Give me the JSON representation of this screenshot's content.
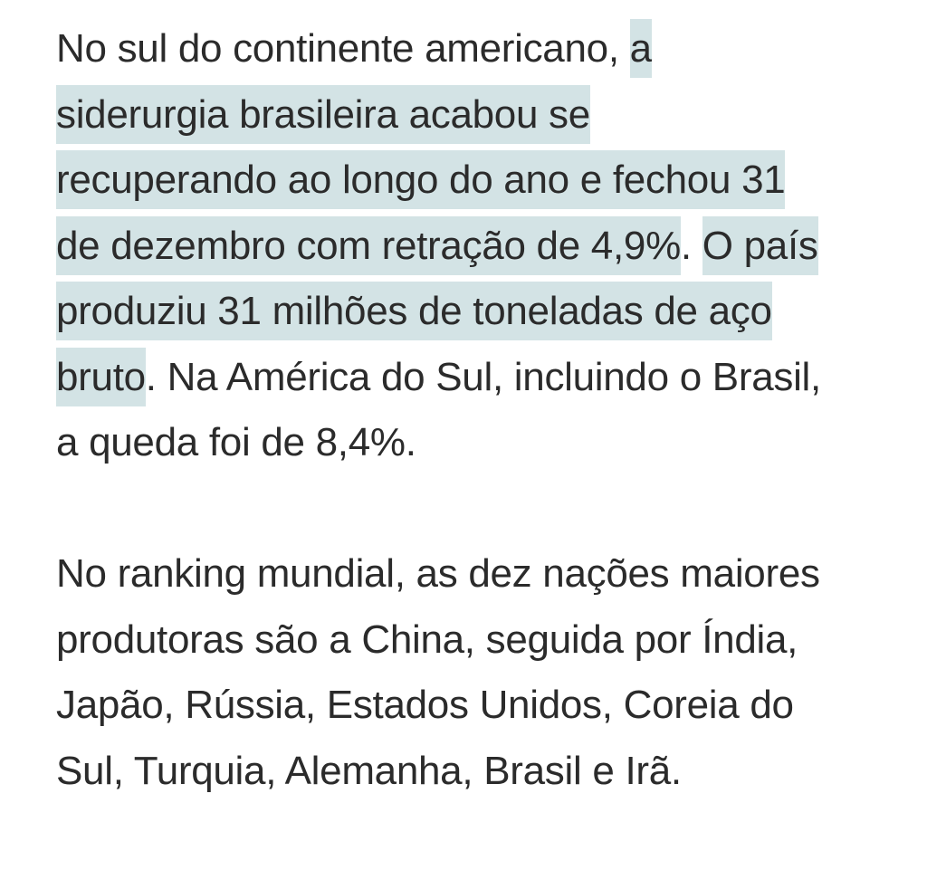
{
  "colors": {
    "text": "#2b2b2b",
    "highlight": "#d3e3e5",
    "background": "#ffffff"
  },
  "paragraphs": [
    {
      "lines": [
        [
          {
            "text": "No sul do continente americano, ",
            "hl": false
          },
          {
            "text": "a",
            "hl": true
          }
        ],
        [
          {
            "text": "siderurgia brasileira acabou se",
            "hl": true
          }
        ],
        [
          {
            "text": "recuperando ao longo do ano e fechou 31",
            "hl": true
          }
        ],
        [
          {
            "text": "de dezembro com retração de 4,9%",
            "hl": true
          },
          {
            "text": ". ",
            "hl": false
          },
          {
            "text": "O país",
            "hl": true
          }
        ],
        [
          {
            "text": "produziu 31 milhões de toneladas de aço",
            "hl": true
          }
        ],
        [
          {
            "text": "bruto",
            "hl": true
          },
          {
            "text": ". Na América do Sul, incluindo o Brasil,",
            "hl": false
          }
        ],
        [
          {
            "text": "a queda foi de 8,4%.",
            "hl": false
          }
        ]
      ]
    },
    {
      "lines": [
        [
          {
            "text": "No ranking mundial, as dez nações maiores",
            "hl": false
          }
        ],
        [
          {
            "text": "produtoras são a China, seguida por Índia,",
            "hl": false
          }
        ],
        [
          {
            "text": "Japão, Rússia, Estados Unidos, Coreia do",
            "hl": false
          }
        ],
        [
          {
            "text": "Sul, Turquia, Alemanha, Brasil e Irã.",
            "hl": false
          }
        ]
      ]
    }
  ]
}
